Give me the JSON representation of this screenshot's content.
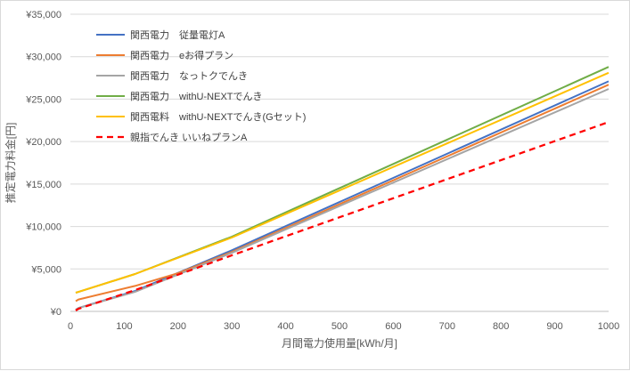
{
  "chart_data": {
    "type": "line",
    "xlabel": "月間電力使用量[kWh/月]",
    "ylabel": "推定電力料金[円]",
    "xlim": [
      0,
      1000
    ],
    "ylim": [
      0,
      35000
    ],
    "xticks": [
      0,
      100,
      200,
      300,
      400,
      500,
      600,
      700,
      800,
      900,
      1000
    ],
    "yticks": [
      0,
      5000,
      10000,
      15000,
      20000,
      25000,
      30000,
      35000
    ],
    "ytick_labels": [
      "¥0",
      "¥5,000",
      "¥10,000",
      "¥15,000",
      "¥20,000",
      "¥25,000",
      "¥30,000",
      "¥35,000"
    ],
    "grid": "horizontal",
    "legend_position": "top-left",
    "series": [
      {
        "name": "関西電力　従量電灯A",
        "color": "#4472c4",
        "dash": "solid",
        "x": [
          10,
          15,
          120,
          300,
          1000
        ],
        "y": [
          200,
          400,
          2400,
          7200,
          27100
        ]
      },
      {
        "name": "関西電力　eお得プラン",
        "color": "#ed7d31",
        "dash": "solid",
        "x": [
          10,
          15,
          120,
          200,
          300,
          1000
        ],
        "y": [
          1200,
          1400,
          3000,
          4500,
          7000,
          26700
        ]
      },
      {
        "name": "関西電力　なっトクでんき",
        "color": "#a5a5a5",
        "dash": "solid",
        "x": [
          10,
          15,
          120,
          300,
          1000
        ],
        "y": [
          200,
          400,
          2300,
          6900,
          26200
        ]
      },
      {
        "name": "関西電力　withU-NEXTでんき",
        "color": "#70ad47",
        "dash": "solid",
        "x": [
          10,
          15,
          120,
          300,
          1000
        ],
        "y": [
          2200,
          2300,
          4400,
          8800,
          28800
        ]
      },
      {
        "name": "関西電料　withU-NEXTでんき(Gセット)",
        "color": "#ffc000",
        "dash": "solid",
        "x": [
          10,
          15,
          120,
          300,
          1000
        ],
        "y": [
          2200,
          2300,
          4400,
          8700,
          28100
        ]
      },
      {
        "name": "親指でんき いいねプランA",
        "color": "#ff0000",
        "dash": "dashed",
        "x": [
          10,
          15,
          120,
          300,
          1000
        ],
        "y": [
          100,
          300,
          2500,
          6600,
          22300
        ]
      }
    ]
  }
}
